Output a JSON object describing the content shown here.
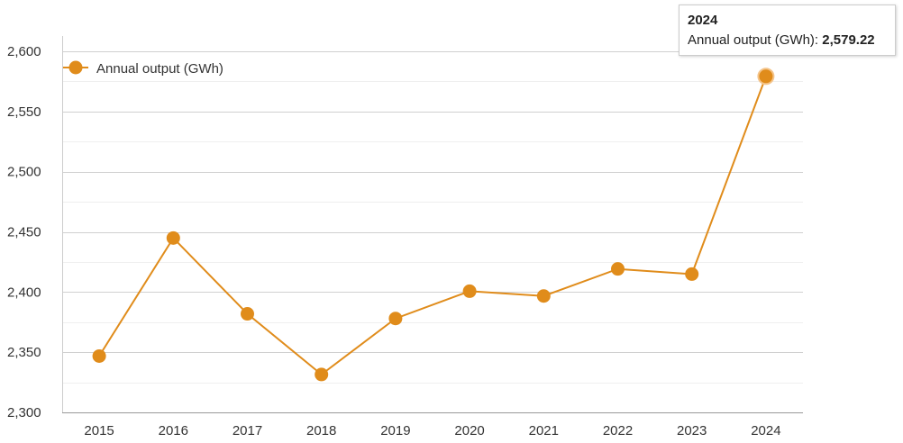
{
  "chart_data": {
    "type": "line",
    "categories": [
      "2015",
      "2016",
      "2017",
      "2018",
      "2019",
      "2020",
      "2021",
      "2022",
      "2023",
      "2024"
    ],
    "series": [
      {
        "name": "Annual output (GWh)",
        "values": [
          2346.8,
          2444.9,
          2381.9,
          2331.5,
          2378.0,
          2400.7,
          2396.7,
          2419.2,
          2414.9,
          2579.22
        ],
        "color": "#e08c1b"
      }
    ],
    "ylim": [
      2300,
      2600
    ],
    "yticks": [
      "2,300",
      "2,350",
      "2,400",
      "2,450",
      "2,500",
      "2,550",
      "2,600"
    ],
    "grid": true,
    "legend": "top-left",
    "title": "",
    "xlabel": "",
    "ylabel": ""
  },
  "tooltip": {
    "title": "2024",
    "series_label": "Annual output (GWh):",
    "value": "2,579.22"
  }
}
